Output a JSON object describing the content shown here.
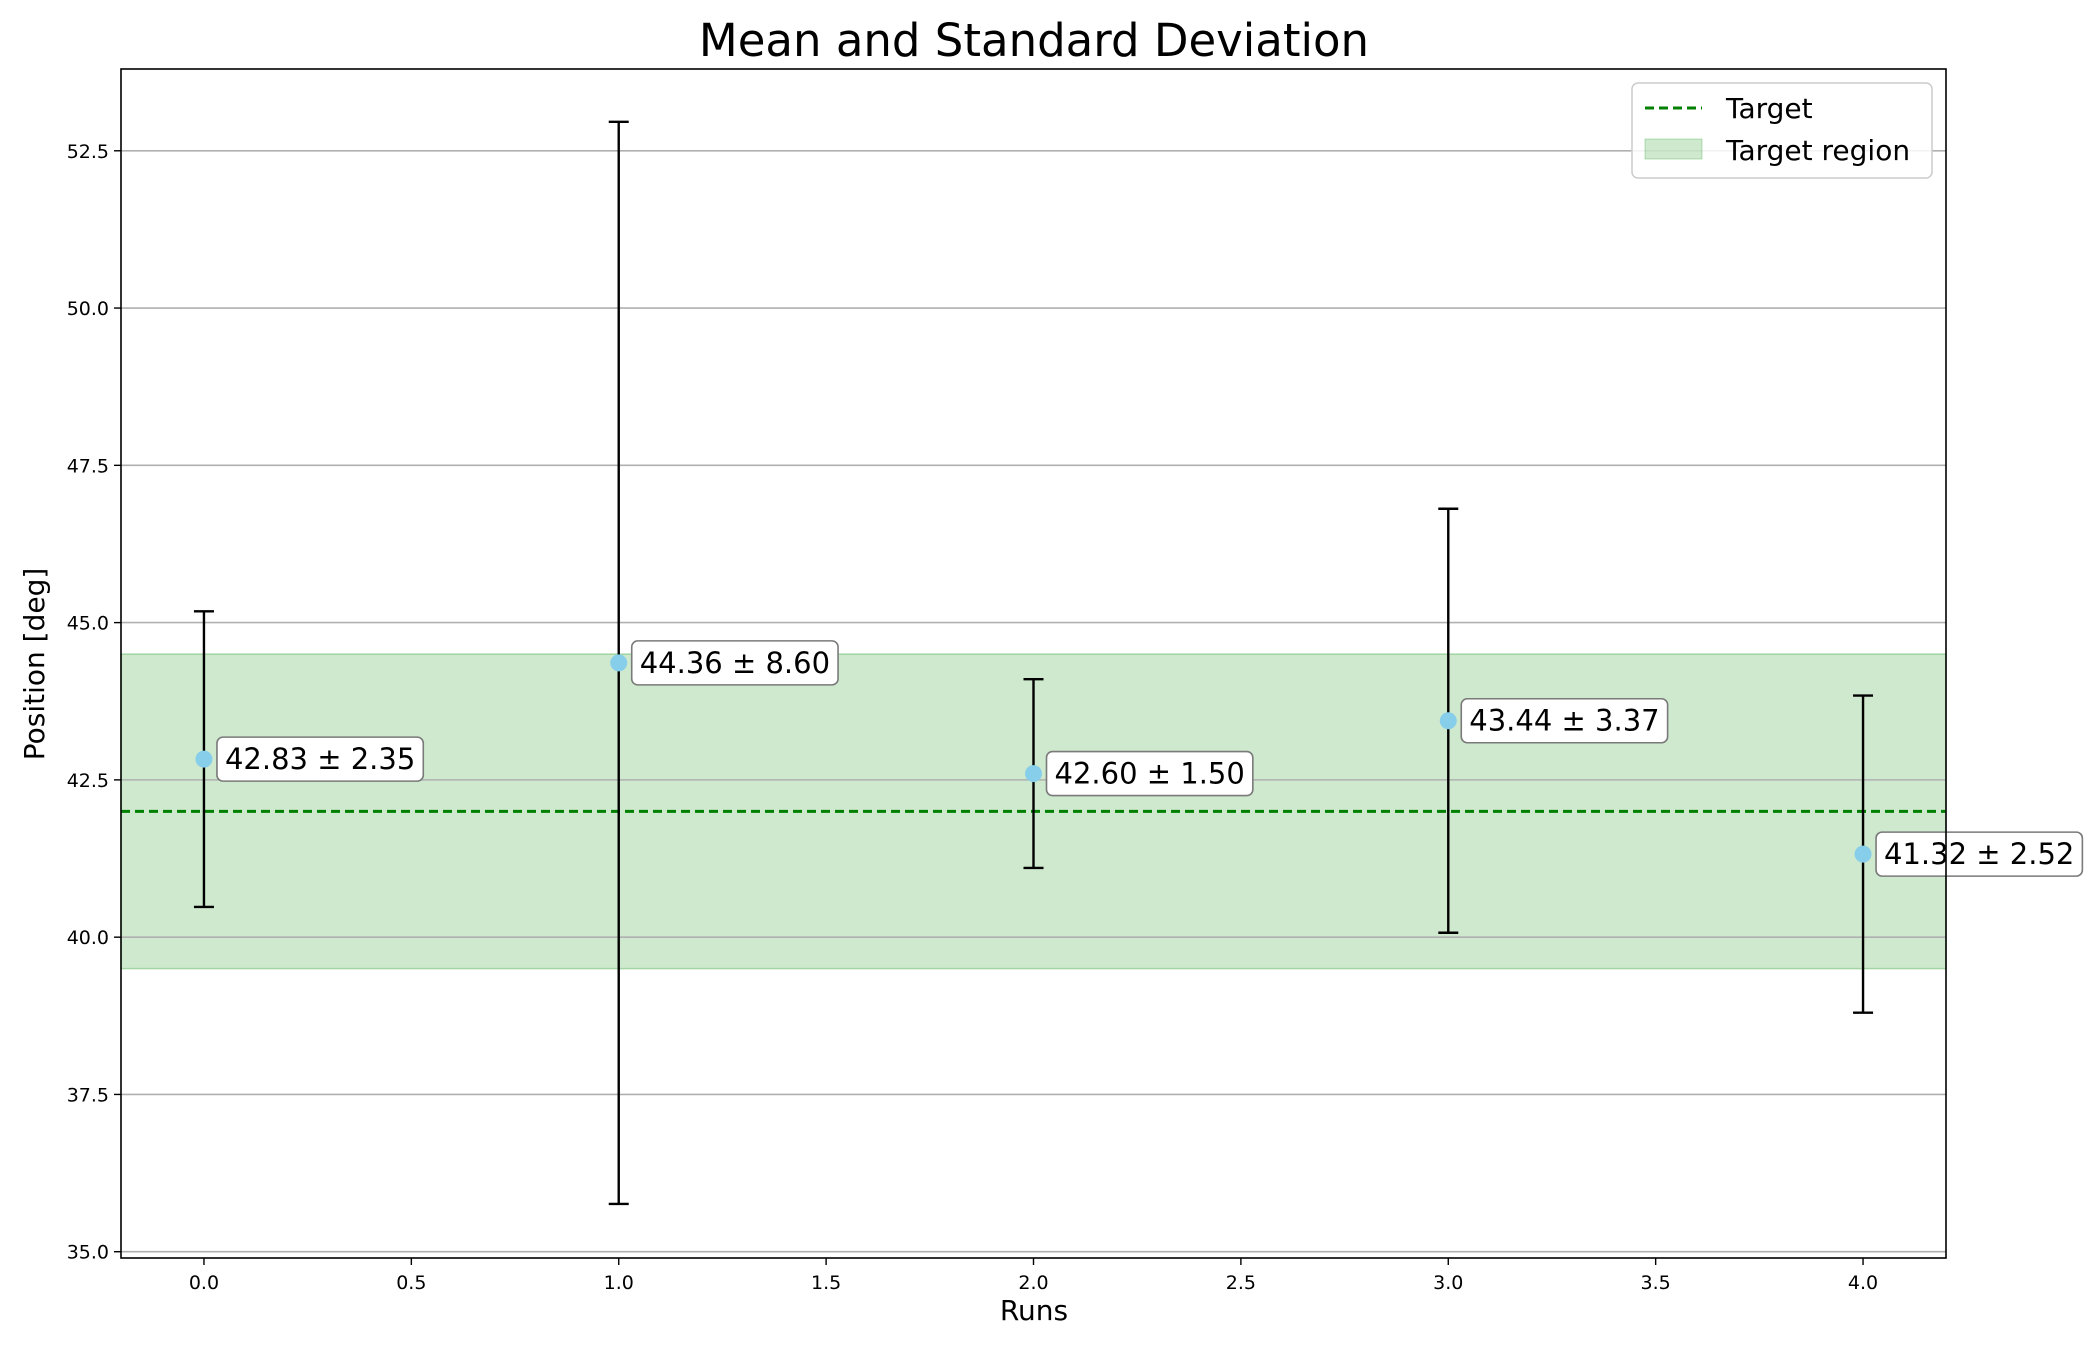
{
  "chart_data": {
    "type": "scatter",
    "title": "Mean and Standard Deviation",
    "xlabel": "Runs",
    "ylabel": "Position [deg]",
    "xlim": [
      -0.2,
      4.2
    ],
    "ylim": [
      34.9,
      53.8
    ],
    "xticks": [
      0.0,
      0.5,
      1.0,
      1.5,
      2.0,
      2.5,
      3.0,
      3.5,
      4.0
    ],
    "xtick_labels": [
      "0.0",
      "0.5",
      "1.0",
      "1.5",
      "2.0",
      "2.5",
      "3.0",
      "3.5",
      "4.0"
    ],
    "yticks": [
      35.0,
      37.5,
      40.0,
      42.5,
      45.0,
      47.5,
      50.0,
      52.5
    ],
    "ytick_labels": [
      "35.0",
      "37.5",
      "40.0",
      "42.5",
      "45.0",
      "47.5",
      "50.0",
      "52.5"
    ],
    "grid": "y-major",
    "series": [
      {
        "x": [
          0,
          1,
          2,
          3,
          4
        ],
        "mean": [
          42.83,
          44.36,
          42.6,
          43.44,
          41.32
        ],
        "std": [
          2.35,
          8.6,
          1.5,
          3.37,
          2.52
        ],
        "color": "#87ceeb",
        "errorbar_color": "#000000"
      }
    ],
    "annotations": [
      "42.83 ± 2.35",
      "44.36 ± 8.60",
      "42.60 ± 1.50",
      "43.44 ± 3.37",
      "41.32 ± 2.52"
    ],
    "target": {
      "name": "Target",
      "value": 42.0,
      "color": "#008000",
      "style": "dashed"
    },
    "target_region": {
      "name": "Target region",
      "low": 39.5,
      "high": 44.5,
      "color": "#2ca02c"
    },
    "legend": {
      "placement": "top-right",
      "entries": [
        "Target",
        "Target region"
      ]
    }
  }
}
